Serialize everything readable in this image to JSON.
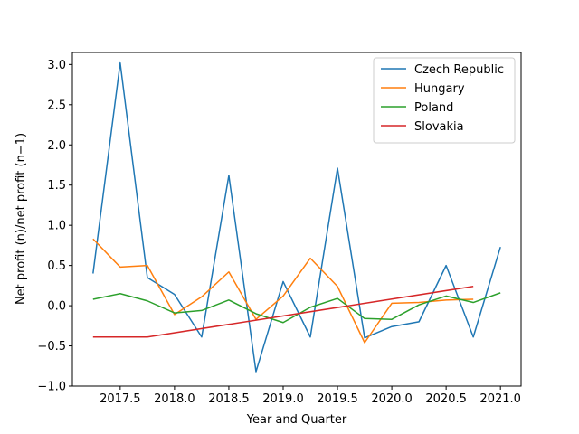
{
  "chart_data": {
    "type": "line",
    "title": "",
    "xlabel": "Year and Quarter",
    "ylabel": "Net profit (n)/net profit (n−1)",
    "xlim": [
      2017.06,
      2021.19
    ],
    "ylim": [
      -1.0,
      3.15
    ],
    "x_ticks": [
      2017.5,
      2018.0,
      2018.5,
      2019.0,
      2019.5,
      2020.0,
      2020.5,
      2021.0
    ],
    "x_tick_labels": [
      "2017.5",
      "2018.0",
      "2018.5",
      "2019.0",
      "2019.5",
      "2020.0",
      "2020.5",
      "2021.0"
    ],
    "y_ticks": [
      -1.0,
      -0.5,
      0.0,
      0.5,
      1.0,
      1.5,
      2.0,
      2.5,
      3.0
    ],
    "y_tick_labels": [
      "−1.0",
      "−0.5",
      "0.0",
      "0.5",
      "1.0",
      "1.5",
      "2.0",
      "2.5",
      "3.0"
    ],
    "grid": false,
    "legend_position": "top-right",
    "series": [
      {
        "name": "Czech Republic",
        "color": "#1f77b4",
        "x": [
          2017.25,
          2017.5,
          2017.75,
          2018.0,
          2018.25,
          2018.5,
          2018.75,
          2019.0,
          2019.25,
          2019.5,
          2019.75,
          2020.0,
          2020.25,
          2020.5,
          2020.75,
          2021.0
        ],
        "values": [
          0.4,
          3.02,
          0.35,
          0.14,
          -0.39,
          1.62,
          -0.82,
          0.3,
          -0.39,
          1.71,
          -0.4,
          -0.26,
          -0.2,
          0.5,
          -0.39,
          0.73
        ]
      },
      {
        "name": "Hungary",
        "color": "#ff7f0e",
        "x": [
          2017.25,
          2017.5,
          2017.75,
          2018.0,
          2018.25,
          2018.5,
          2018.75,
          2019.0,
          2019.25,
          2019.5,
          2019.75,
          2020.0,
          2020.25,
          2020.5,
          2020.75
        ],
        "values": [
          0.83,
          0.48,
          0.5,
          -0.11,
          0.11,
          0.42,
          -0.17,
          0.12,
          0.59,
          0.24,
          -0.46,
          0.03,
          0.04,
          0.07,
          0.08
        ]
      },
      {
        "name": "Poland",
        "color": "#2ca02c",
        "x": [
          2017.25,
          2017.5,
          2017.75,
          2018.0,
          2018.25,
          2018.5,
          2018.75,
          2019.0,
          2019.25,
          2019.5,
          2019.75,
          2020.0,
          2020.25,
          2020.5,
          2020.75,
          2021.0
        ],
        "values": [
          0.08,
          0.15,
          0.06,
          -0.09,
          -0.06,
          0.07,
          -0.1,
          -0.21,
          -0.02,
          0.09,
          -0.16,
          -0.17,
          0.01,
          0.12,
          0.04,
          0.16
        ]
      },
      {
        "name": "Slovakia",
        "color": "#d62728",
        "x": [
          2017.25,
          2017.5,
          2017.75,
          2020.75
        ],
        "values": [
          -0.39,
          -0.39,
          -0.39,
          0.24
        ]
      }
    ]
  }
}
